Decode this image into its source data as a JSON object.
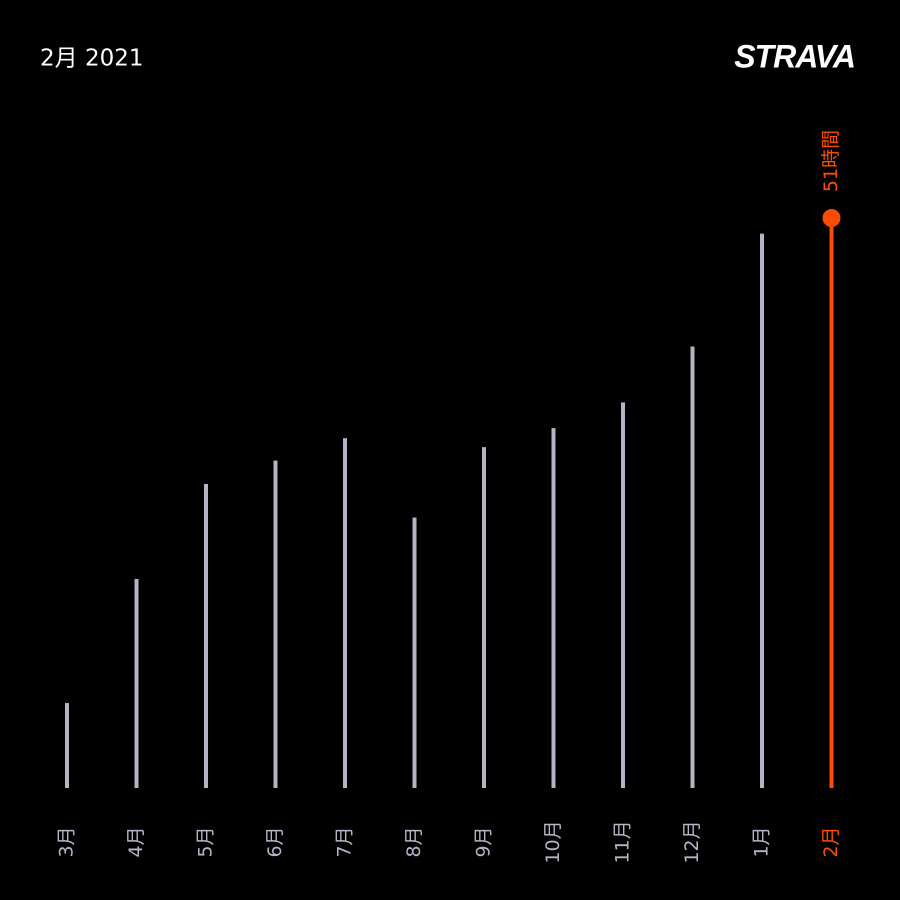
{
  "chart_data": {
    "type": "bar",
    "title": "2月 2021",
    "logo": "STRAVA",
    "categories": [
      "3月",
      "4月",
      "5月",
      "6月",
      "7月",
      "8月",
      "9月",
      "10月",
      "11月",
      "12月",
      "1月",
      "2月"
    ],
    "values": [
      7.6,
      18.7,
      27.2,
      29.3,
      31.3,
      24.2,
      30.5,
      32.2,
      34.5,
      39.5,
      49.6,
      51
    ],
    "value_labels": [
      null,
      null,
      null,
      null,
      null,
      null,
      null,
      null,
      null,
      null,
      null,
      "51時間"
    ],
    "colors": [
      "#b4b4c6",
      "#b4b4c6",
      "#b4b4c6",
      "#b4b4c6",
      "#b4b4c6",
      "#b4b4c6",
      "#b4b4c6",
      "#b4b4c6",
      "#b4b4c6",
      "#b4b4c6",
      "#b4b4c6",
      "#fc4c02"
    ]
  }
}
